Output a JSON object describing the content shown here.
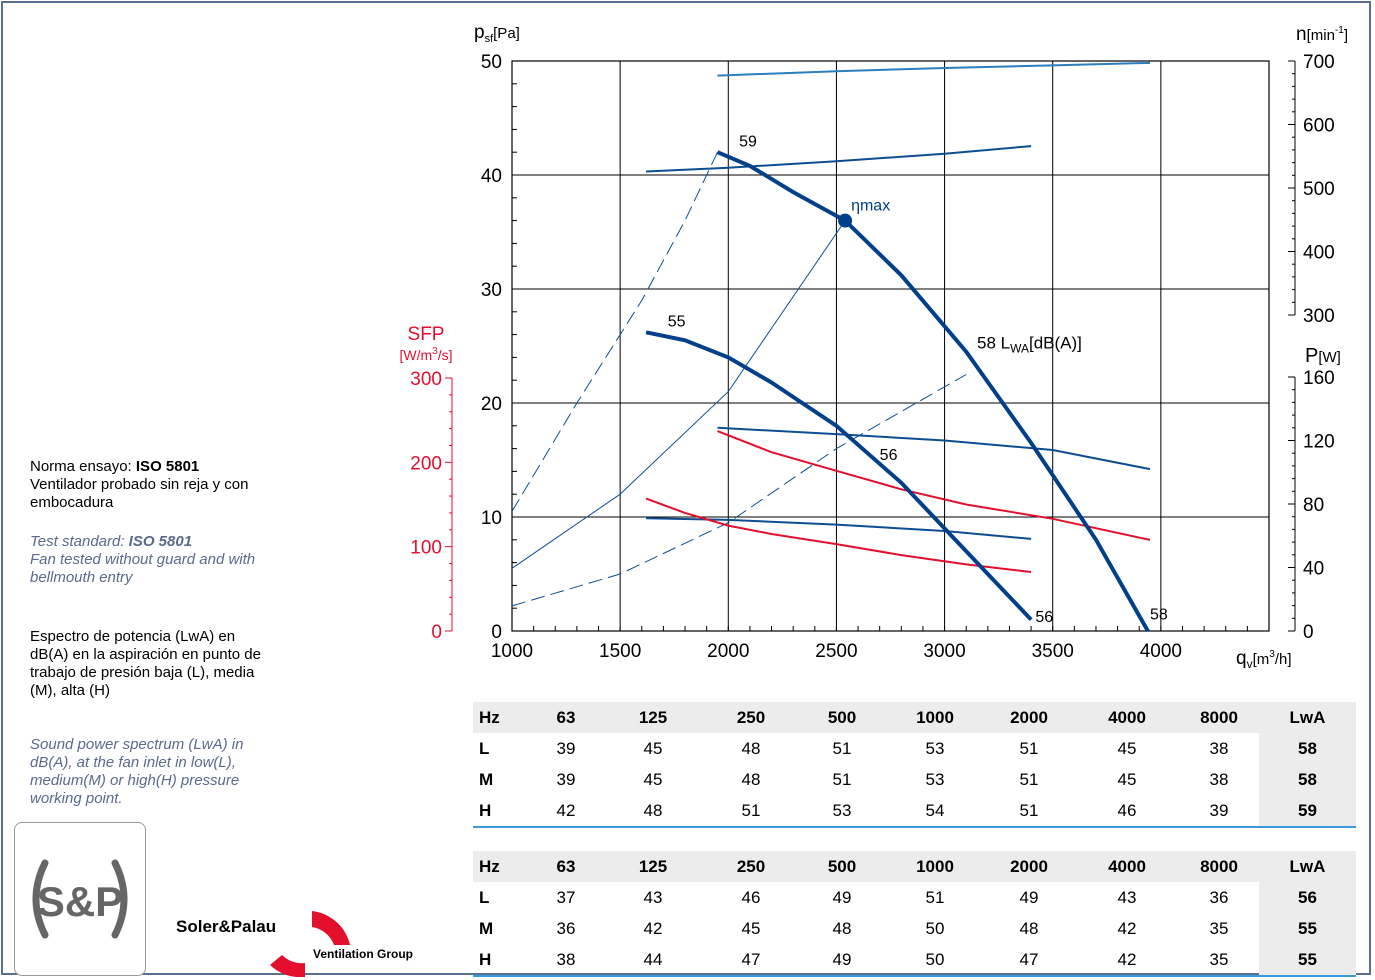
{
  "chart_data": {
    "type": "line",
    "x_axis": {
      "label_base": "q",
      "label_sub": "v",
      "label_unit_pre": "[m",
      "label_unit_sup": "3",
      "label_unit_post": "/h]",
      "range": [
        1000,
        4500
      ],
      "ticks": [
        1000,
        1500,
        2000,
        2500,
        3000,
        3500,
        4000
      ]
    },
    "y_axis_pressure": {
      "label_base": "p",
      "label_sub": "sf",
      "label_unit": "[Pa]",
      "range": [
        0,
        50
      ],
      "ticks": [
        0,
        10,
        20,
        30,
        40,
        50
      ]
    },
    "y_axis_speed": {
      "label_base": "n",
      "label_unit_pre": "[min",
      "label_unit_sup": "-1",
      "label_unit_post": "]",
      "range": [
        300,
        700
      ],
      "ticks": [
        300,
        400,
        500,
        600,
        700
      ]
    },
    "y_axis_power": {
      "label_base": "P",
      "label_unit": "[W]",
      "range": [
        0,
        160
      ],
      "ticks": [
        0,
        40,
        80,
        120,
        160
      ]
    },
    "y_axis_sfp": {
      "label": "SFP",
      "label_unit_pre": "[W/m",
      "label_unit_sup": "3",
      "label_unit_post": "/s]",
      "range": [
        0,
        300
      ],
      "ticks": [
        0,
        100,
        200,
        300
      ]
    },
    "pressure_curves": [
      {
        "name": "high",
        "x": [
          1950,
          2100,
          2300,
          2540,
          2800,
          3100,
          3400,
          3700,
          3940
        ],
        "y": [
          42,
          40.8,
          38.5,
          36,
          31.2,
          24.5,
          16.5,
          8,
          0
        ]
      },
      {
        "name": "low",
        "x": [
          1620,
          1800,
          2000,
          2200,
          2500,
          2800,
          3100,
          3400
        ],
        "y": [
          26.2,
          25.5,
          24,
          21.8,
          18,
          13,
          7,
          1
        ]
      }
    ],
    "speed_curves": [
      {
        "name": "high",
        "x": [
          1950,
          2500,
          3000,
          3500,
          3950
        ],
        "y": [
          677,
          684,
          689,
          693,
          697
        ]
      },
      {
        "name": "low",
        "x": [
          1620,
          2000,
          2500,
          3000,
          3400
        ],
        "y": [
          526,
          532,
          542,
          554,
          566
        ]
      }
    ],
    "power_curves": [
      {
        "name": "high",
        "x": [
          1950,
          2500,
          3000,
          3500,
          3950
        ],
        "y": [
          128,
          124,
          120,
          114,
          102
        ]
      },
      {
        "name": "low",
        "x": [
          1620,
          2000,
          2500,
          3000,
          3400
        ],
        "y": [
          71,
          70,
          67,
          63,
          58
        ]
      }
    ],
    "sfp_curves": [
      {
        "name": "high",
        "x": [
          1950,
          2200,
          2500,
          2800,
          3100,
          3500,
          3950
        ],
        "y": [
          237,
          212,
          190,
          168,
          150,
          133,
          108
        ]
      },
      {
        "name": "low",
        "x": [
          1620,
          1800,
          2000,
          2200,
          2500,
          2800,
          3100,
          3400
        ],
        "y": [
          157,
          140,
          125,
          115,
          103,
          90,
          79,
          70
        ]
      }
    ],
    "system_curves": [
      {
        "style": "dashed",
        "x": [
          1000,
          1300,
          1600,
          1800,
          1950
        ],
        "y": [
          10.5,
          20,
          29,
          36,
          42
        ]
      },
      {
        "style": "solid-thin",
        "x": [
          1000,
          1500,
          2000,
          2540
        ],
        "y": [
          5.5,
          12,
          21,
          36
        ]
      },
      {
        "style": "dashed",
        "x": [
          1000,
          1500,
          2000,
          2500,
          3100
        ],
        "y": [
          2.2,
          5,
          9.5,
          16,
          22.5
        ]
      }
    ],
    "eta_max": {
      "label": "ηmax",
      "x": 2540,
      "y": 36
    },
    "annotations": [
      {
        "text": "59",
        "x": 2050,
        "y": 42.5
      },
      {
        "text": "55",
        "x": 1720,
        "y": 26.7
      },
      {
        "text": "56",
        "x": 2700,
        "y": 15
      },
      {
        "text": "56",
        "x": 3420,
        "y": 0.8
      },
      {
        "text": "58",
        "x": 3950,
        "y": 1
      }
    ],
    "lwa_label": {
      "value": "58",
      "base": "L",
      "sub": "WA",
      "unit": "[dB(A)]",
      "x": 3150,
      "y": 24.8
    }
  },
  "side_texts": {
    "es1_pre": "Norma ensayo: ",
    "es1_bold": "ISO 5801",
    "es1_rest": "Ventilador probado sin reja y con embocadura",
    "en1_pre": "Test standard: ",
    "en1_bold": "ISO 5801",
    "en1_rest": "Fan tested without guard and with bellmouth entry",
    "es2": "Espectro de potencia (LwA) en dB(A) en la aspiración en punto de trabajo de presión baja (L), media (M), alta (H)",
    "en2": "Sound power spectrum (LwA) in dB(A), at the fan inlet in low(L), medium(M) or high(H) pressure working point."
  },
  "logo": {
    "brand": "Soler&Palau",
    "sub": "Ventilation Group",
    "mark": "S&P"
  },
  "table1": {
    "header": [
      "Hz",
      "63",
      "125",
      "250",
      "500",
      "1000",
      "2000",
      "4000",
      "8000",
      "LwA"
    ],
    "rows": [
      [
        "L",
        "39",
        "45",
        "48",
        "51",
        "53",
        "51",
        "45",
        "38",
        "58"
      ],
      [
        "M",
        "39",
        "45",
        "48",
        "51",
        "53",
        "51",
        "45",
        "38",
        "58"
      ],
      [
        "H",
        "42",
        "48",
        "51",
        "53",
        "54",
        "51",
        "46",
        "39",
        "59"
      ]
    ]
  },
  "table2": {
    "header": [
      "Hz",
      "63",
      "125",
      "250",
      "500",
      "1000",
      "2000",
      "4000",
      "8000",
      "LwA"
    ],
    "rows": [
      [
        "L",
        "37",
        "43",
        "46",
        "49",
        "51",
        "49",
        "43",
        "36",
        "56"
      ],
      [
        "M",
        "36",
        "42",
        "45",
        "48",
        "50",
        "48",
        "42",
        "35",
        "55"
      ],
      [
        "H",
        "38",
        "44",
        "47",
        "49",
        "50",
        "47",
        "42",
        "35",
        "55"
      ]
    ]
  },
  "colors": {
    "pressure": "#003f8a",
    "speed_high": "#2b7fbf",
    "speed_low": "#0d4d92",
    "power": "#0d4d92",
    "sfp": "#e30f2d",
    "system": "#0d4d92",
    "grid": "#000000",
    "frame": "#5b6f8f",
    "table_line": "#3a9ad9"
  }
}
